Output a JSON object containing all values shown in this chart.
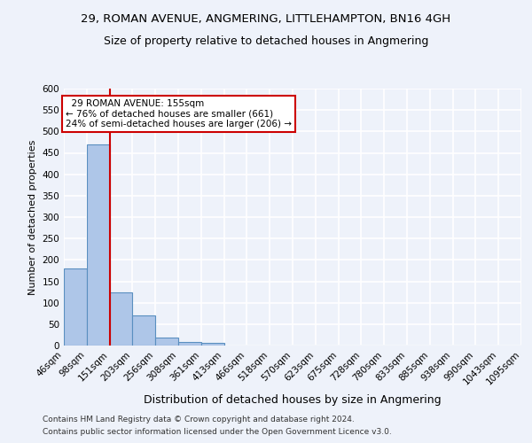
{
  "title": "29, ROMAN AVENUE, ANGMERING, LITTLEHAMPTON, BN16 4GH",
  "subtitle": "Size of property relative to detached houses in Angmering",
  "xlabel": "Distribution of detached houses by size in Angmering",
  "ylabel": "Number of detached properties",
  "footer_line1": "Contains HM Land Registry data © Crown copyright and database right 2024.",
  "footer_line2": "Contains public sector information licensed under the Open Government Licence v3.0.",
  "bin_labels": [
    "46sqm",
    "98sqm",
    "151sqm",
    "203sqm",
    "256sqm",
    "308sqm",
    "361sqm",
    "413sqm",
    "466sqm",
    "518sqm",
    "570sqm",
    "623sqm",
    "675sqm",
    "728sqm",
    "780sqm",
    "833sqm",
    "885sqm",
    "938sqm",
    "990sqm",
    "1043sqm",
    "1095sqm"
  ],
  "bar_values": [
    180,
    470,
    125,
    70,
    18,
    8,
    6,
    0,
    0,
    0,
    0,
    0,
    0,
    0,
    0,
    0,
    0,
    0,
    0,
    0
  ],
  "bar_color": "#aec6e8",
  "bar_edge_color": "#5a8fc0",
  "property_line_x": 2,
  "annotation_text": "  29 ROMAN AVENUE: 155sqm\n← 76% of detached houses are smaller (661)\n24% of semi-detached houses are larger (206) →",
  "annotation_box_color": "#cc0000",
  "ylim": [
    0,
    600
  ],
  "yticks": [
    0,
    50,
    100,
    150,
    200,
    250,
    300,
    350,
    400,
    450,
    500,
    550,
    600
  ],
  "background_color": "#eef2fa",
  "grid_color": "#ffffff",
  "title_fontsize": 9.5,
  "subtitle_fontsize": 9,
  "ylabel_fontsize": 8,
  "xlabel_fontsize": 9,
  "tick_fontsize": 7.5,
  "annotation_fontsize": 7.5,
  "footer_fontsize": 6.5
}
